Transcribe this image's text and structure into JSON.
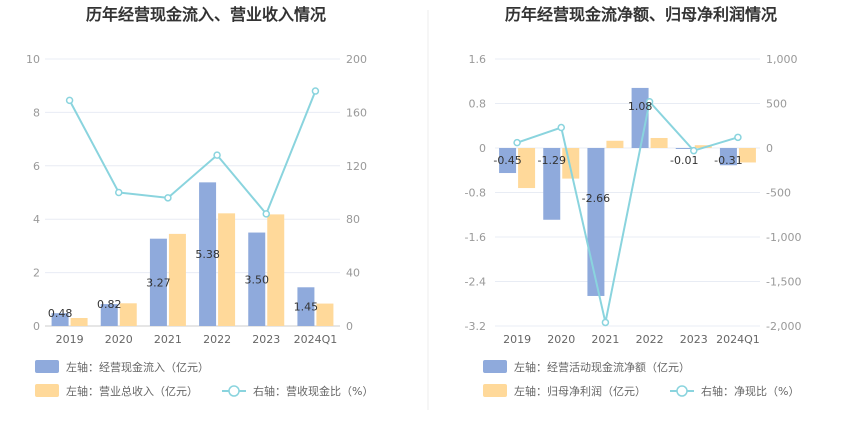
{
  "chart_data": [
    {
      "type": "bar",
      "title": "历年经营现金流入、营业收入情况",
      "categories": [
        "2019",
        "2020",
        "2021",
        "2022",
        "2023",
        "2024Q1"
      ],
      "left_axis": {
        "ylim": [
          0,
          10
        ],
        "ticks": [
          "0",
          "2",
          "4",
          "6",
          "8",
          "10"
        ]
      },
      "right_axis": {
        "ylim": [
          0,
          200
        ],
        "ticks": [
          "0",
          "40",
          "80",
          "120",
          "160",
          "200"
        ]
      },
      "series": [
        {
          "name": "左轴：经营现金流入（亿元）",
          "axis": "left",
          "kind": "bar",
          "color": "#8faadc",
          "values": [
            0.48,
            0.82,
            3.27,
            5.38,
            3.5,
            1.45
          ],
          "labels": [
            "0.48",
            "0.82",
            "3.27",
            "5.38",
            "3.50",
            "1.45"
          ]
        },
        {
          "name": "左轴：营业总收入（亿元）",
          "axis": "left",
          "kind": "bar",
          "color": "#ffd99a",
          "values": [
            0.3,
            0.85,
            3.45,
            4.22,
            4.18,
            0.84
          ]
        },
        {
          "name": "右轴：营收现金比（%）",
          "axis": "right",
          "kind": "line",
          "color": "#8ad4de",
          "values": [
            169,
            100,
            96,
            128,
            84,
            176
          ]
        }
      ]
    },
    {
      "type": "bar",
      "title": "历年经营现金流净额、归母净利润情况",
      "categories": [
        "2019",
        "2020",
        "2021",
        "2022",
        "2023",
        "2024Q1"
      ],
      "left_axis": {
        "ylim": [
          -3.2,
          1.6
        ],
        "ticks": [
          "-3.2",
          "-2.4",
          "-1.6",
          "-0.8",
          "0",
          "0.8",
          "1.6"
        ]
      },
      "right_axis": {
        "ylim": [
          -2000,
          1000
        ],
        "ticks": [
          "-2,000",
          "-1,500",
          "-1,000",
          "-500",
          "0",
          "500",
          "1,000"
        ]
      },
      "series": [
        {
          "name": "左轴：经营活动现金流净额（亿元）",
          "axis": "left",
          "kind": "bar",
          "color": "#8faadc",
          "values": [
            -0.45,
            -1.29,
            -2.66,
            1.08,
            -0.01,
            -0.31
          ],
          "labels": [
            "-0.45",
            "-1.29",
            "-2.66",
            "1.08",
            "-0.01",
            "-0.31"
          ]
        },
        {
          "name": "左轴：归母净利润（亿元）",
          "axis": "left",
          "kind": "bar",
          "color": "#ffd99a",
          "values": [
            -0.72,
            -0.55,
            0.13,
            0.18,
            0.05,
            -0.26
          ]
        },
        {
          "name": "右轴：净现比（%）",
          "axis": "right",
          "kind": "line",
          "color": "#8ad4de",
          "values": [
            60,
            230,
            -1960,
            520,
            -30,
            120
          ]
        }
      ]
    }
  ]
}
